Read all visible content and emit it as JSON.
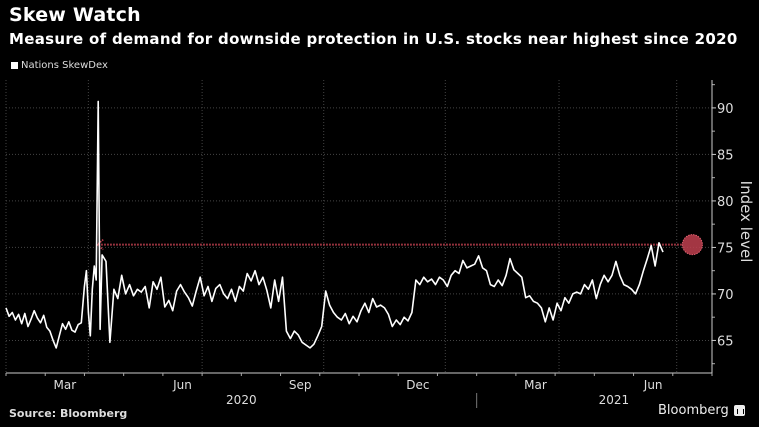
{
  "header": {
    "title": "Skew Watch",
    "subtitle": "Measure of demand for downside protection in U.S. stocks near highest since 2020"
  },
  "footer": {
    "source": "Source: Bloomberg",
    "brand": "Bloomberg"
  },
  "colors": {
    "background": "#000000",
    "line": "#ffffff",
    "grid": "#444444",
    "highlight": "#c0404f"
  },
  "chart_data": {
    "type": "line",
    "title": "Skew Watch",
    "subtitle": "Measure of demand for downside protection in U.S. stocks near highest since 2020",
    "xlabel": "",
    "ylabel": "Index level",
    "ylim": [
      61.5,
      93
    ],
    "y_ticks": [
      65,
      70,
      75,
      80,
      85,
      90
    ],
    "x_range": [
      "2020-01-01",
      "2021-06-30"
    ],
    "x_ticks": [
      {
        "label": "Mar",
        "t": 2
      },
      {
        "label": "Jun",
        "t": 5
      },
      {
        "label": "Sep",
        "t": 8
      },
      {
        "label": "Dec",
        "t": 11
      },
      {
        "label": "Mar",
        "t": 14
      },
      {
        "label": "Jun",
        "t": 17
      }
    ],
    "x_gridlines_month": [
      0,
      2.1,
      5.0,
      8.1,
      11.2,
      14.1,
      17.1
    ],
    "year_labels": [
      {
        "label": "2020",
        "t": 6.0
      },
      {
        "label": "2021",
        "t": 15.5
      }
    ],
    "year_divider_t": 12.0,
    "grid": true,
    "legend": {
      "position": "top-left",
      "entries": [
        "Nations SkewDex"
      ]
    },
    "annotation": {
      "type": "dotted-arrow",
      "from_t": 17.5,
      "to_t": 2.3,
      "value": 75.3,
      "circle_t": 17.5
    },
    "series": [
      {
        "name": "Nations SkewDex",
        "t": [
          0.0,
          0.08,
          0.16,
          0.24,
          0.32,
          0.4,
          0.48,
          0.56,
          0.64,
          0.72,
          0.8,
          0.88,
          0.96,
          1.04,
          1.12,
          1.2,
          1.28,
          1.36,
          1.44,
          1.52,
          1.6,
          1.68,
          1.76,
          1.84,
          1.92,
          2.0,
          2.05,
          2.1,
          2.15,
          2.2,
          2.25,
          2.3,
          2.35,
          2.4,
          2.45,
          2.55,
          2.65,
          2.75,
          2.85,
          2.95,
          3.05,
          3.15,
          3.25,
          3.35,
          3.45,
          3.55,
          3.65,
          3.75,
          3.85,
          3.95,
          4.05,
          4.15,
          4.25,
          4.35,
          4.45,
          4.55,
          4.65,
          4.75,
          4.85,
          4.95,
          5.05,
          5.15,
          5.25,
          5.35,
          5.45,
          5.55,
          5.65,
          5.75,
          5.85,
          5.95,
          6.05,
          6.15,
          6.25,
          6.35,
          6.45,
          6.55,
          6.65,
          6.75,
          6.85,
          6.95,
          7.05,
          7.15,
          7.25,
          7.35,
          7.45,
          7.55,
          7.65,
          7.75,
          7.85,
          7.95,
          8.05,
          8.15,
          8.25,
          8.35,
          8.45,
          8.55,
          8.65,
          8.75,
          8.85,
          8.95,
          9.05,
          9.15,
          9.25,
          9.35,
          9.45,
          9.55,
          9.65,
          9.75,
          9.85,
          9.95,
          10.05,
          10.15,
          10.25,
          10.35,
          10.45,
          10.55,
          10.65,
          10.75,
          10.85,
          10.95,
          11.05,
          11.15,
          11.25,
          11.35,
          11.45,
          11.55,
          11.65,
          11.75,
          11.85,
          11.95,
          12.05,
          12.15,
          12.25,
          12.35,
          12.45,
          12.55,
          12.65,
          12.75,
          12.85,
          12.95,
          13.05,
          13.15,
          13.25,
          13.35,
          13.45,
          13.55,
          13.65,
          13.75,
          13.85,
          13.95,
          14.05,
          14.15,
          14.25,
          14.35,
          14.45,
          14.55,
          14.65,
          14.75,
          14.85,
          14.95,
          15.05,
          15.15,
          15.25,
          15.35,
          15.45,
          15.55,
          15.65,
          15.75,
          15.85,
          15.95,
          16.05,
          16.15,
          16.25,
          16.35,
          16.45,
          16.55,
          16.65,
          16.75,
          16.85,
          16.95,
          17.05,
          17.15,
          17.25,
          17.35,
          17.45,
          17.55
        ],
        "values": [
          68.5,
          67.6,
          68.0,
          67.2,
          67.8,
          66.8,
          67.9,
          66.5,
          67.3,
          68.2,
          67.4,
          66.9,
          67.7,
          66.4,
          66.0,
          65.0,
          64.2,
          65.5,
          66.8,
          66.2,
          67.0,
          66.1,
          65.9,
          66.7,
          66.9,
          70.8,
          72.5,
          68.0,
          65.5,
          70.5,
          73.0,
          71.5,
          90.7,
          66.2,
          74.2,
          73.5,
          64.8,
          70.5,
          69.5,
          72.0,
          70.0,
          71.0,
          69.8,
          70.5,
          70.2,
          70.8,
          68.5,
          71.3,
          70.5,
          71.8,
          68.6,
          69.3,
          68.2,
          70.3,
          71.0,
          70.2,
          69.6,
          68.7,
          70.3,
          71.8,
          69.8,
          70.8,
          69.2,
          70.6,
          71.0,
          70.0,
          69.5,
          70.5,
          69.2,
          70.8,
          70.3,
          72.2,
          71.4,
          72.5,
          71.0,
          71.8,
          70.4,
          68.5,
          71.5,
          69.2,
          71.8,
          66.0,
          65.2,
          66.0,
          65.6,
          64.8,
          64.5,
          64.2,
          64.6,
          65.5,
          66.5,
          70.3,
          68.8,
          68.0,
          67.5,
          67.2,
          67.9,
          66.8,
          67.6,
          67.0,
          68.2,
          69.0,
          68.0,
          69.5,
          68.6,
          68.8,
          68.5,
          67.8,
          66.5,
          67.2,
          66.7,
          67.5,
          67.1,
          68.0,
          71.5,
          71.0,
          71.8,
          71.3,
          71.6,
          71.0,
          71.8,
          71.5,
          70.8,
          72.0,
          72.5,
          72.2,
          73.6,
          72.8,
          73.0,
          73.2,
          74.1,
          72.8,
          72.5,
          71.0,
          70.8,
          71.5,
          70.9,
          72.0,
          73.8,
          72.6,
          72.2,
          71.8,
          69.6,
          69.8,
          69.2,
          69.0,
          68.5,
          67.0,
          68.5,
          67.2,
          69.0,
          68.2,
          69.6,
          69.0,
          70.0,
          70.2,
          70.0,
          71.0,
          70.5,
          71.5,
          69.5,
          71.0,
          72.0,
          71.3,
          72.0,
          73.5,
          72.0,
          71.0,
          70.8,
          70.5,
          70.0,
          71.0,
          72.5,
          73.8,
          75.2,
          73.0,
          75.5,
          74.5
        ]
      }
    ]
  }
}
